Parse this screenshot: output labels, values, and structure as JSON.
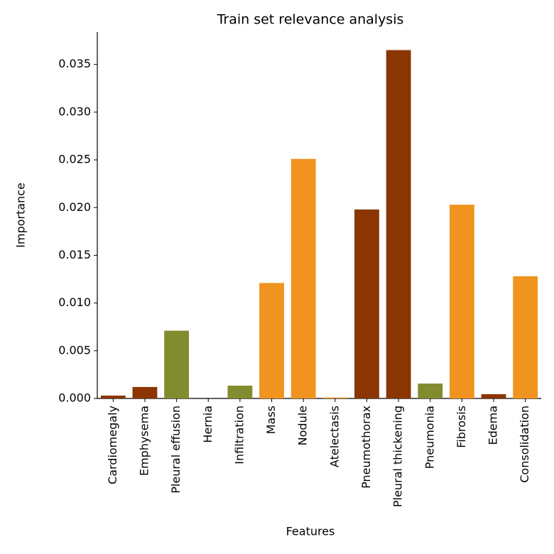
{
  "chart_data": {
    "type": "bar",
    "title": "Train set relevance analysis",
    "x_label": "Features",
    "y_label": "Importance",
    "categories": [
      "Cardiomegaly",
      "Emphysema",
      "Pleural effusion",
      "Hernia",
      "Infiltration",
      "Mass",
      "Nodule",
      "Atelectasis",
      "Pneumothorax",
      "Pleural thickening",
      "Pneumonia",
      "Fibrosis",
      "Edema",
      "Consolidation"
    ],
    "values": [
      0.0003,
      0.0012,
      0.0071,
      0,
      0.00134,
      0.0121,
      0.0251,
      0.0001,
      0.0198,
      0.0365,
      0.00156,
      0.0203,
      0.00045,
      0.0128
    ],
    "colors": [
      "#8b3503",
      "#8b3503",
      "#838b2f",
      "#838b2f",
      "#838b2f",
      "#f0931f",
      "#f0931f",
      "#f0931f",
      "#8b3503",
      "#8b3503",
      "#838b2f",
      "#f0931f",
      "#8b3503",
      "#f0931f"
    ],
    "ylim": [
      0,
      0.0384
    ],
    "yticks": [
      {
        "value": 0,
        "label": "0.000"
      },
      {
        "value": 0.005,
        "label": "0.005"
      },
      {
        "value": 0.01,
        "label": "0.010"
      },
      {
        "value": 0.015,
        "label": "0.015"
      },
      {
        "value": 0.02,
        "label": "0.020"
      },
      {
        "value": 0.025,
        "label": "0.025"
      },
      {
        "value": 0.03,
        "label": "0.030"
      },
      {
        "value": 0.035,
        "label": "0.035"
      }
    ]
  }
}
